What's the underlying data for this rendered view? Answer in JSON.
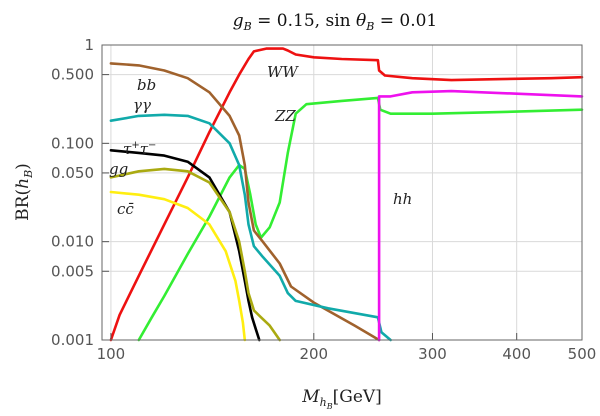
{
  "chart_data": {
    "type": "line",
    "title": "g_B = 0.15,  sin θ_B = 0.01",
    "xlabel": "M_{h_B}[GeV]",
    "ylabel": "BR(h_B)",
    "xscale": "log",
    "yscale": "log",
    "xlim": [
      97,
      500
    ],
    "ylim": [
      0.001,
      1
    ],
    "x_ticks": [
      100,
      200,
      300,
      400,
      500
    ],
    "x_tick_labels": [
      "100",
      "200",
      "300",
      "400",
      "500"
    ],
    "y_ticks": [
      0.001,
      0.005,
      0.01,
      0.05,
      0.1,
      0.5,
      1
    ],
    "y_tick_labels": [
      "0.001",
      "0.005",
      "0.010",
      "0.050",
      "0.100",
      "0.500",
      "1"
    ],
    "grid": true,
    "series": [
      {
        "name": "WW",
        "color": "#ee1111",
        "points": [
          [
            100,
            0.001
          ],
          [
            103,
            0.0018
          ],
          [
            110,
            0.0045
          ],
          [
            120,
            0.015
          ],
          [
            130,
            0.045
          ],
          [
            140,
            0.13
          ],
          [
            150,
            0.33
          ],
          [
            155,
            0.5
          ],
          [
            160,
            0.72
          ],
          [
            163,
            0.86
          ],
          [
            170,
            0.92
          ],
          [
            180,
            0.92
          ],
          [
            183,
            0.88
          ],
          [
            188,
            0.8
          ],
          [
            200,
            0.75
          ],
          [
            220,
            0.72
          ],
          [
            249,
            0.7
          ],
          [
            250,
            0.55
          ],
          [
            255,
            0.49
          ],
          [
            280,
            0.46
          ],
          [
            320,
            0.44
          ],
          [
            380,
            0.45
          ],
          [
            450,
            0.46
          ],
          [
            500,
            0.47
          ]
        ]
      },
      {
        "name": "ZZ",
        "color": "#33ee33",
        "points": [
          [
            110,
            0.001
          ],
          [
            115,
            0.0017
          ],
          [
            120,
            0.0028
          ],
          [
            130,
            0.0075
          ],
          [
            140,
            0.018
          ],
          [
            150,
            0.045
          ],
          [
            155,
            0.06
          ],
          [
            158,
            0.055
          ],
          [
            161,
            0.03
          ],
          [
            164,
            0.015
          ],
          [
            167,
            0.011
          ],
          [
            172,
            0.014
          ],
          [
            178,
            0.025
          ],
          [
            183,
            0.08
          ],
          [
            188,
            0.2
          ],
          [
            195,
            0.25
          ],
          [
            220,
            0.27
          ],
          [
            249,
            0.29
          ],
          [
            251,
            0.22
          ],
          [
            260,
            0.2
          ],
          [
            300,
            0.2
          ],
          [
            400,
            0.21
          ],
          [
            500,
            0.22
          ]
        ]
      },
      {
        "name": "bb",
        "color": "#a0622d",
        "points": [
          [
            100,
            0.65
          ],
          [
            110,
            0.62
          ],
          [
            120,
            0.55
          ],
          [
            130,
            0.46
          ],
          [
            140,
            0.33
          ],
          [
            150,
            0.19
          ],
          [
            155,
            0.12
          ],
          [
            158,
            0.06
          ],
          [
            160,
            0.025
          ],
          [
            163,
            0.013
          ],
          [
            168,
            0.01
          ],
          [
            178,
            0.006
          ],
          [
            185,
            0.0035
          ],
          [
            200,
            0.0024
          ],
          [
            230,
            0.0014
          ],
          [
            250,
            0.001
          ]
        ]
      },
      {
        "name": "γγ",
        "color": "#11aaaa",
        "points": [
          [
            100,
            0.17
          ],
          [
            110,
            0.19
          ],
          [
            120,
            0.195
          ],
          [
            130,
            0.19
          ],
          [
            140,
            0.16
          ],
          [
            150,
            0.1
          ],
          [
            155,
            0.06
          ],
          [
            158,
            0.03
          ],
          [
            160,
            0.015
          ],
          [
            163,
            0.009
          ],
          [
            168,
            0.007
          ],
          [
            178,
            0.0045
          ],
          [
            183,
            0.003
          ],
          [
            188,
            0.0025
          ],
          [
            210,
            0.0021
          ],
          [
            249,
            0.0017
          ],
          [
            252,
            0.0012
          ],
          [
            260,
            0.001
          ]
        ]
      },
      {
        "name": "ττ",
        "color": "#000000",
        "points": [
          [
            100,
            0.085
          ],
          [
            110,
            0.08
          ],
          [
            120,
            0.075
          ],
          [
            130,
            0.065
          ],
          [
            140,
            0.045
          ],
          [
            150,
            0.02
          ],
          [
            155,
            0.008
          ],
          [
            158,
            0.004
          ],
          [
            160,
            0.0025
          ],
          [
            162,
            0.0017
          ],
          [
            164,
            0.0013
          ],
          [
            166,
            0.001
          ]
        ]
      },
      {
        "name": "gg",
        "color": "#aaaa11",
        "points": [
          [
            100,
            0.045
          ],
          [
            110,
            0.052
          ],
          [
            120,
            0.055
          ],
          [
            130,
            0.052
          ],
          [
            140,
            0.04
          ],
          [
            150,
            0.02
          ],
          [
            155,
            0.01
          ],
          [
            158,
            0.005
          ],
          [
            160,
            0.003
          ],
          [
            163,
            0.002
          ],
          [
            167,
            0.0017
          ],
          [
            172,
            0.0014
          ],
          [
            178,
            0.001
          ]
        ]
      },
      {
        "name": "cc",
        "color": "#ffee11",
        "points": [
          [
            100,
            0.032
          ],
          [
            110,
            0.03
          ],
          [
            120,
            0.027
          ],
          [
            130,
            0.022
          ],
          [
            140,
            0.015
          ],
          [
            148,
            0.008
          ],
          [
            153,
            0.004
          ],
          [
            155,
            0.0025
          ],
          [
            157,
            0.0015
          ],
          [
            158,
            0.001
          ]
        ]
      },
      {
        "name": "hh",
        "color": "#ee11ee",
        "points": [
          [
            250,
            0.001
          ],
          [
            250,
            0.3
          ],
          [
            260,
            0.3
          ],
          [
            280,
            0.33
          ],
          [
            320,
            0.34
          ],
          [
            400,
            0.32
          ],
          [
            500,
            0.3
          ]
        ]
      }
    ],
    "labels": {
      "bb": "bb",
      "gamma": "γγ",
      "tau": "τ",
      "tau_sup": "+",
      "tau2": "τ",
      "tau2_sup": "−",
      "gg": "gg",
      "cc": "cc̄",
      "ww": "WW",
      "zz": "ZZ",
      "hh": "hh"
    },
    "title_parts": {
      "g": "g",
      "g_sub": "B",
      "eq1": " = 0.15, ",
      "sin": "sin ",
      "theta": "θ",
      "theta_sub": "B",
      "eq2": " = 0.01"
    },
    "ylabel_parts": {
      "br": "BR(",
      "h": "h",
      "sub": "B",
      "close": ")"
    },
    "xlabel_parts": {
      "m": "M",
      "h": "h",
      "sub": "B",
      "unit": "[GeV]"
    }
  }
}
